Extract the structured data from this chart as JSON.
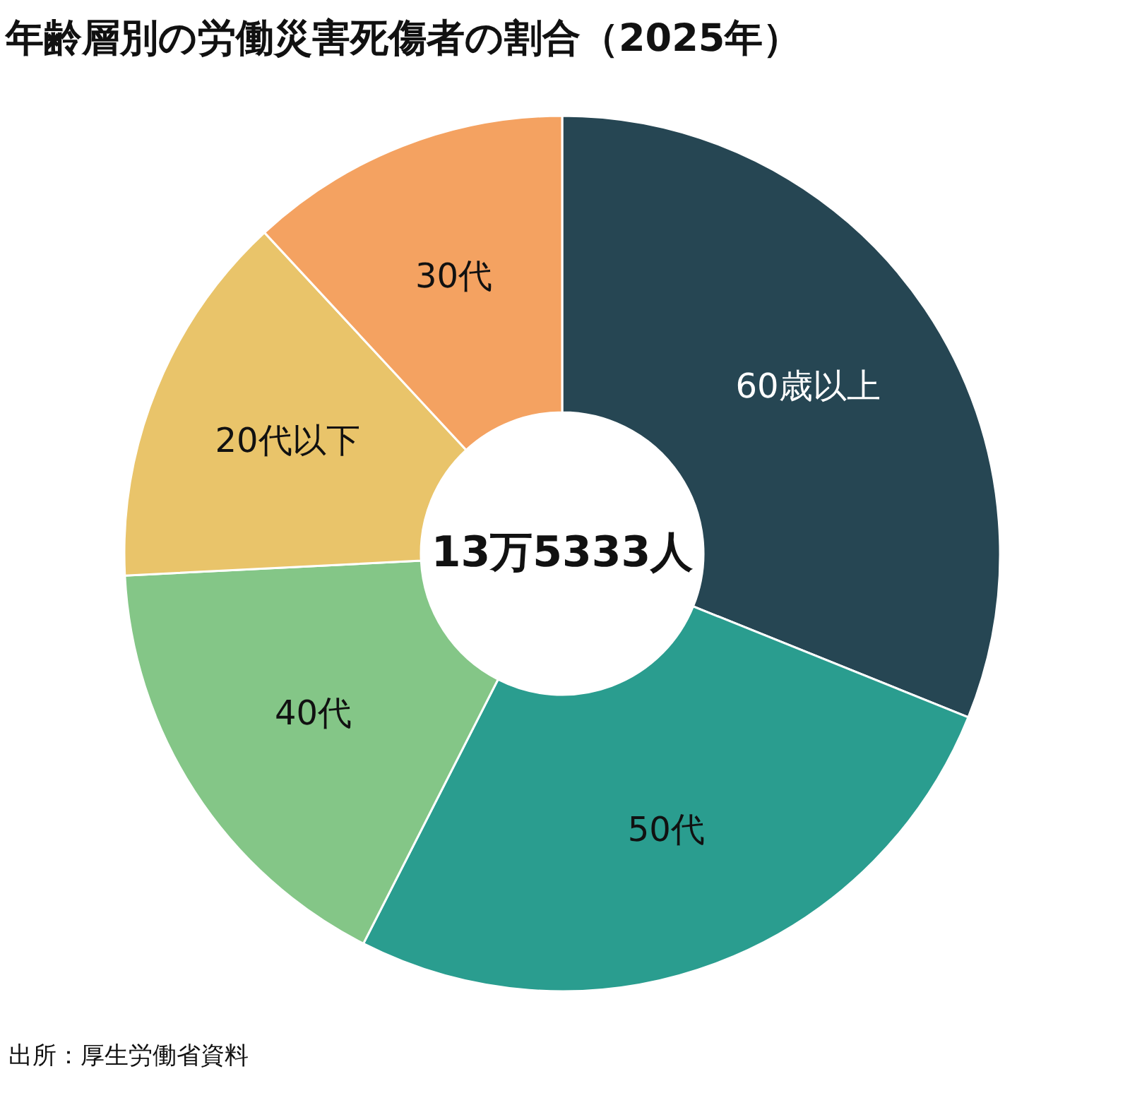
{
  "chart_data": {
    "type": "donut",
    "title": "年齢層別の労働災害死傷者の割合（2025年）",
    "categories": [
      "60歳以上",
      "50代",
      "40代",
      "20代以下",
      "30代"
    ],
    "values": [
      31.1,
      26.4,
      16.7,
      13.9,
      11.9
    ],
    "colors": [
      "#264653",
      "#2a9d8f",
      "#84c687",
      "#e9c46a",
      "#f4a261"
    ],
    "annotations": [
      "13万5333人",
      "出所：厚生労働省資料"
    ]
  }
}
